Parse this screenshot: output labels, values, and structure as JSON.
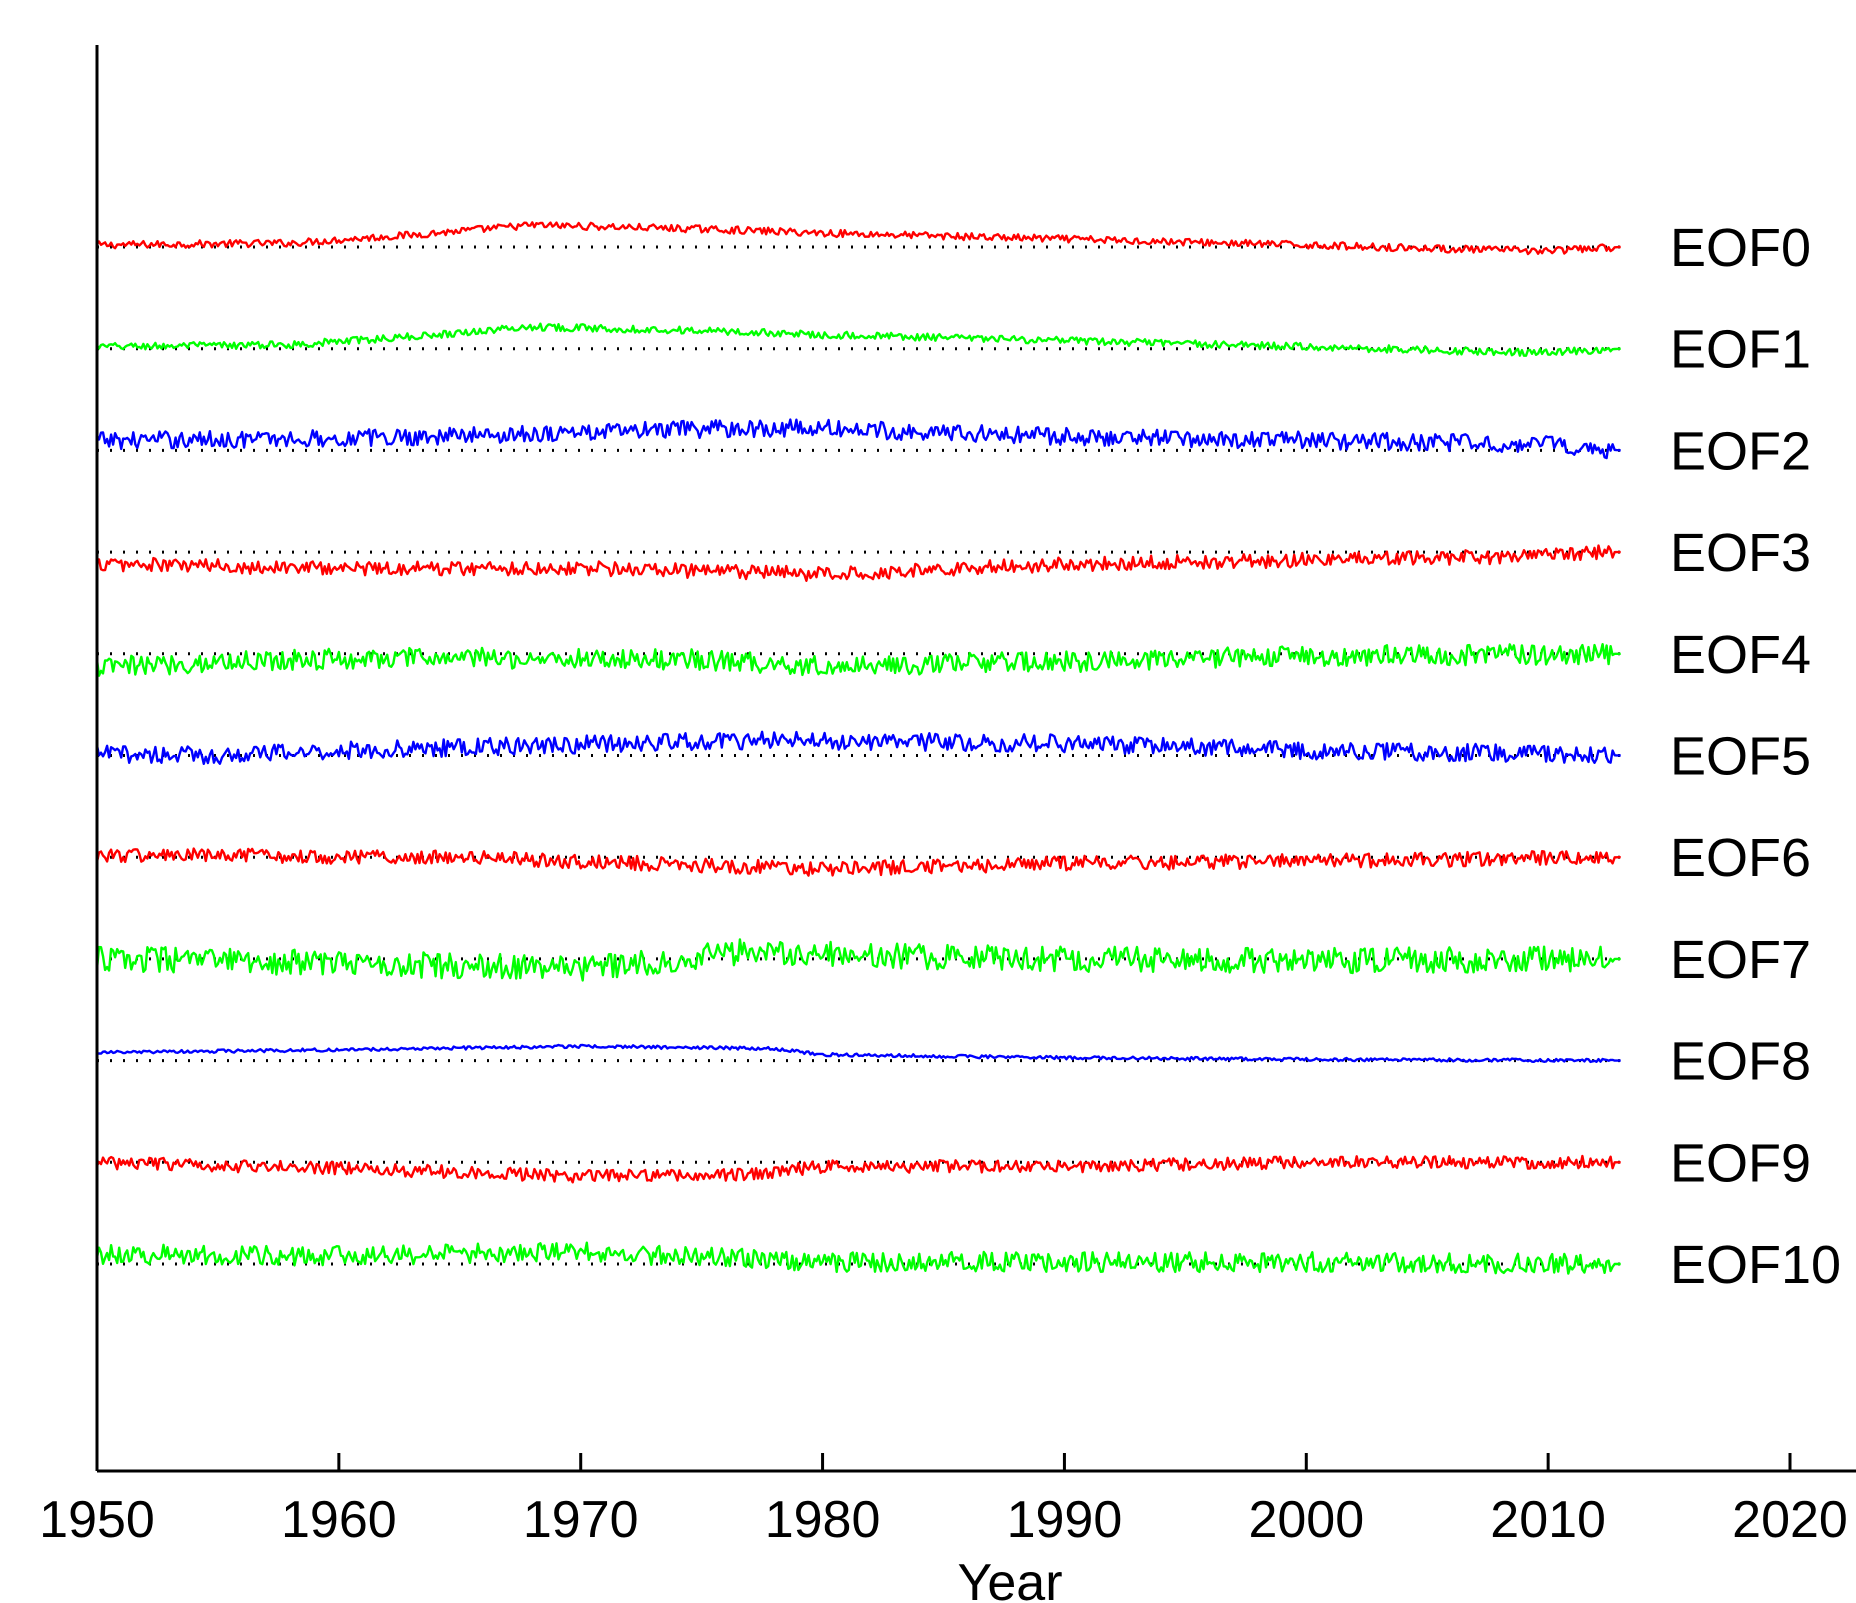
{
  "chart_data": {
    "type": "line",
    "title": "",
    "xlabel": "Year",
    "ylabel": "",
    "xlim": [
      1950,
      2020
    ],
    "x_ticks": [
      "1950",
      "1960",
      "1970",
      "1980",
      "1990",
      "2000",
      "2010",
      "2020"
    ],
    "x_range": [
      1950,
      2013
    ],
    "grid": false,
    "legend": "none",
    "series": [
      {
        "name": "EOF0",
        "color": "#ff0000",
        "baseline_index": 0,
        "noise": 0.09,
        "values": [
          [
            1950,
            0.05
          ],
          [
            1958,
            0.1
          ],
          [
            1963,
            0.3
          ],
          [
            1968,
            0.55
          ],
          [
            1975,
            0.45
          ],
          [
            1980,
            0.35
          ],
          [
            1990,
            0.2
          ],
          [
            2000,
            0.05
          ],
          [
            2006,
            -0.05
          ],
          [
            2010,
            -0.1
          ],
          [
            2013,
            0.0
          ]
        ]
      },
      {
        "name": "EOF1",
        "color": "#00ff00",
        "baseline_index": 1,
        "noise": 0.09,
        "values": [
          [
            1950,
            0.05
          ],
          [
            1958,
            0.1
          ],
          [
            1963,
            0.3
          ],
          [
            1968,
            0.55
          ],
          [
            1975,
            0.45
          ],
          [
            1980,
            0.35
          ],
          [
            1990,
            0.2
          ],
          [
            2000,
            0.05
          ],
          [
            2006,
            -0.05
          ],
          [
            2010,
            -0.1
          ],
          [
            2013,
            0.0
          ]
        ]
      },
      {
        "name": "EOF2",
        "color": "#0000ff",
        "baseline_index": 2,
        "noise": 0.22,
        "values": [
          [
            1950,
            0.25
          ],
          [
            1960,
            0.3
          ],
          [
            1970,
            0.45
          ],
          [
            1976,
            0.55
          ],
          [
            1980,
            0.55
          ],
          [
            1990,
            0.35
          ],
          [
            2000,
            0.25
          ],
          [
            2010,
            0.15
          ],
          [
            2012,
            0.05
          ],
          [
            2013,
            0.0
          ]
        ]
      },
      {
        "name": "EOF3",
        "color": "#ff0000",
        "baseline_index": 3,
        "noise": 0.18,
        "values": [
          [
            1950,
            -0.3
          ],
          [
            1960,
            -0.4
          ],
          [
            1970,
            -0.4
          ],
          [
            1980,
            -0.55
          ],
          [
            1990,
            -0.3
          ],
          [
            2000,
            -0.2
          ],
          [
            2010,
            -0.1
          ],
          [
            2012,
            0.0
          ],
          [
            2013,
            0.0
          ]
        ]
      },
      {
        "name": "EOF4",
        "color": "#00ff00",
        "baseline_index": 4,
        "noise": 0.26,
        "values": [
          [
            1950,
            -0.35
          ],
          [
            1957,
            -0.15
          ],
          [
            1965,
            -0.1
          ],
          [
            1975,
            -0.15
          ],
          [
            1980,
            -0.3
          ],
          [
            1990,
            -0.2
          ],
          [
            2000,
            -0.05
          ],
          [
            2013,
            0.0
          ]
        ]
      },
      {
        "name": "EOF5",
        "color": "#0000ff",
        "baseline_index": 5,
        "noise": 0.22,
        "values": [
          [
            1950,
            0.05
          ],
          [
            1955,
            0.0
          ],
          [
            1959,
            0.1
          ],
          [
            1965,
            0.2
          ],
          [
            1975,
            0.35
          ],
          [
            1978,
            0.38
          ],
          [
            1990,
            0.3
          ],
          [
            2000,
            0.12
          ],
          [
            2010,
            0.05
          ],
          [
            2013,
            0.0
          ]
        ]
      },
      {
        "name": "EOF6",
        "color": "#ff0000",
        "baseline_index": 6,
        "noise": 0.18,
        "values": [
          [
            1950,
            0.05
          ],
          [
            1965,
            0.0
          ],
          [
            1970,
            -0.1
          ],
          [
            1975,
            -0.2
          ],
          [
            1980,
            -0.3
          ],
          [
            1990,
            -0.15
          ],
          [
            2000,
            -0.1
          ],
          [
            2013,
            0.0
          ]
        ]
      },
      {
        "name": "EOF7",
        "color": "#00ff00",
        "baseline_index": 7,
        "noise": 0.32,
        "values": [
          [
            1950,
            0.0
          ],
          [
            1960,
            -0.1
          ],
          [
            1970,
            -0.25
          ],
          [
            1977,
            0.2
          ],
          [
            1985,
            0.05
          ],
          [
            1990,
            0.0
          ],
          [
            2000,
            -0.05
          ],
          [
            2013,
            0.0
          ]
        ]
      },
      {
        "name": "EOF8",
        "color": "#0000ff",
        "baseline_index": 8,
        "noise": 0.04,
        "values": [
          [
            1950,
            0.2
          ],
          [
            1960,
            0.27
          ],
          [
            1970,
            0.36
          ],
          [
            1978,
            0.3
          ],
          [
            1980,
            0.15
          ],
          [
            1990,
            0.07
          ],
          [
            2000,
            0.03
          ],
          [
            2013,
            0.0
          ]
        ]
      },
      {
        "name": "EOF9",
        "color": "#ff0000",
        "baseline_index": 9,
        "noise": 0.16,
        "values": [
          [
            1950,
            0.0
          ],
          [
            1960,
            -0.15
          ],
          [
            1970,
            -0.35
          ],
          [
            1977,
            -0.3
          ],
          [
            1980,
            -0.1
          ],
          [
            1990,
            -0.1
          ],
          [
            2000,
            0.0
          ],
          [
            2013,
            0.0
          ]
        ]
      },
      {
        "name": "EOF10",
        "color": "#00ff00",
        "baseline_index": 10,
        "noise": 0.25,
        "values": [
          [
            1950,
            0.25
          ],
          [
            1960,
            0.2
          ],
          [
            1970,
            0.3
          ],
          [
            1976,
            0.15
          ],
          [
            1980,
            0.05
          ],
          [
            1990,
            0.05
          ],
          [
            2000,
            0.05
          ],
          [
            2013,
            0.0
          ]
        ]
      }
    ]
  }
}
